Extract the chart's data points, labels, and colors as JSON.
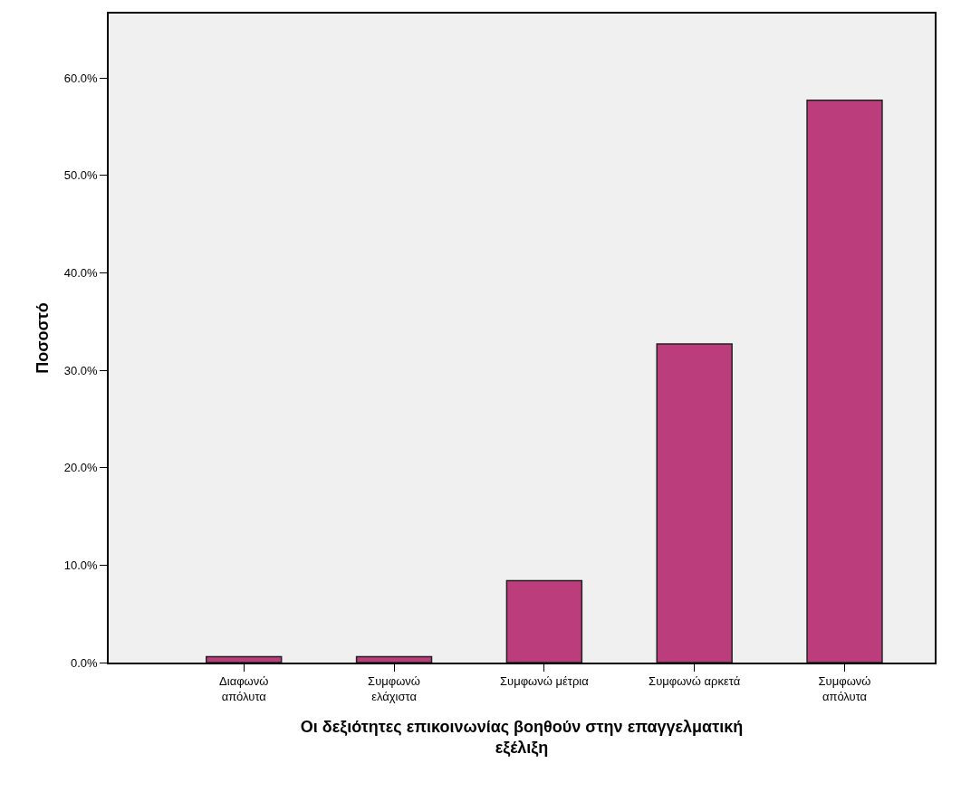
{
  "chart_data": {
    "type": "bar",
    "xlabel": "Οι δεξιότητες επικοινωνίας βοηθούν στην επαγγελματική\nεξέλιξη",
    "ylabel": "Ποσοστό",
    "categories": [
      "Διαφωνώ\nαπόλυτα",
      "Συμφωνώ\nελάχιστα",
      "Συμφωνώ μέτρια",
      "Συμφωνώ αρκετά",
      "Συμφωνώ\nαπόλυτα"
    ],
    "values": [
      0.6,
      0.6,
      8.4,
      32.7,
      57.7
    ],
    "color": "#bb3d7b",
    "ylim": [
      0,
      66.6
    ],
    "yticks": [
      {
        "value": 0,
        "label": "0.0%"
      },
      {
        "value": 10,
        "label": "10.0%"
      },
      {
        "value": 20,
        "label": "20.0%"
      },
      {
        "value": 30,
        "label": "30.0%"
      },
      {
        "value": 40,
        "label": "40.0%"
      },
      {
        "value": 50,
        "label": "50.0%"
      },
      {
        "value": 60,
        "label": "60.0%"
      }
    ],
    "grid": false
  }
}
